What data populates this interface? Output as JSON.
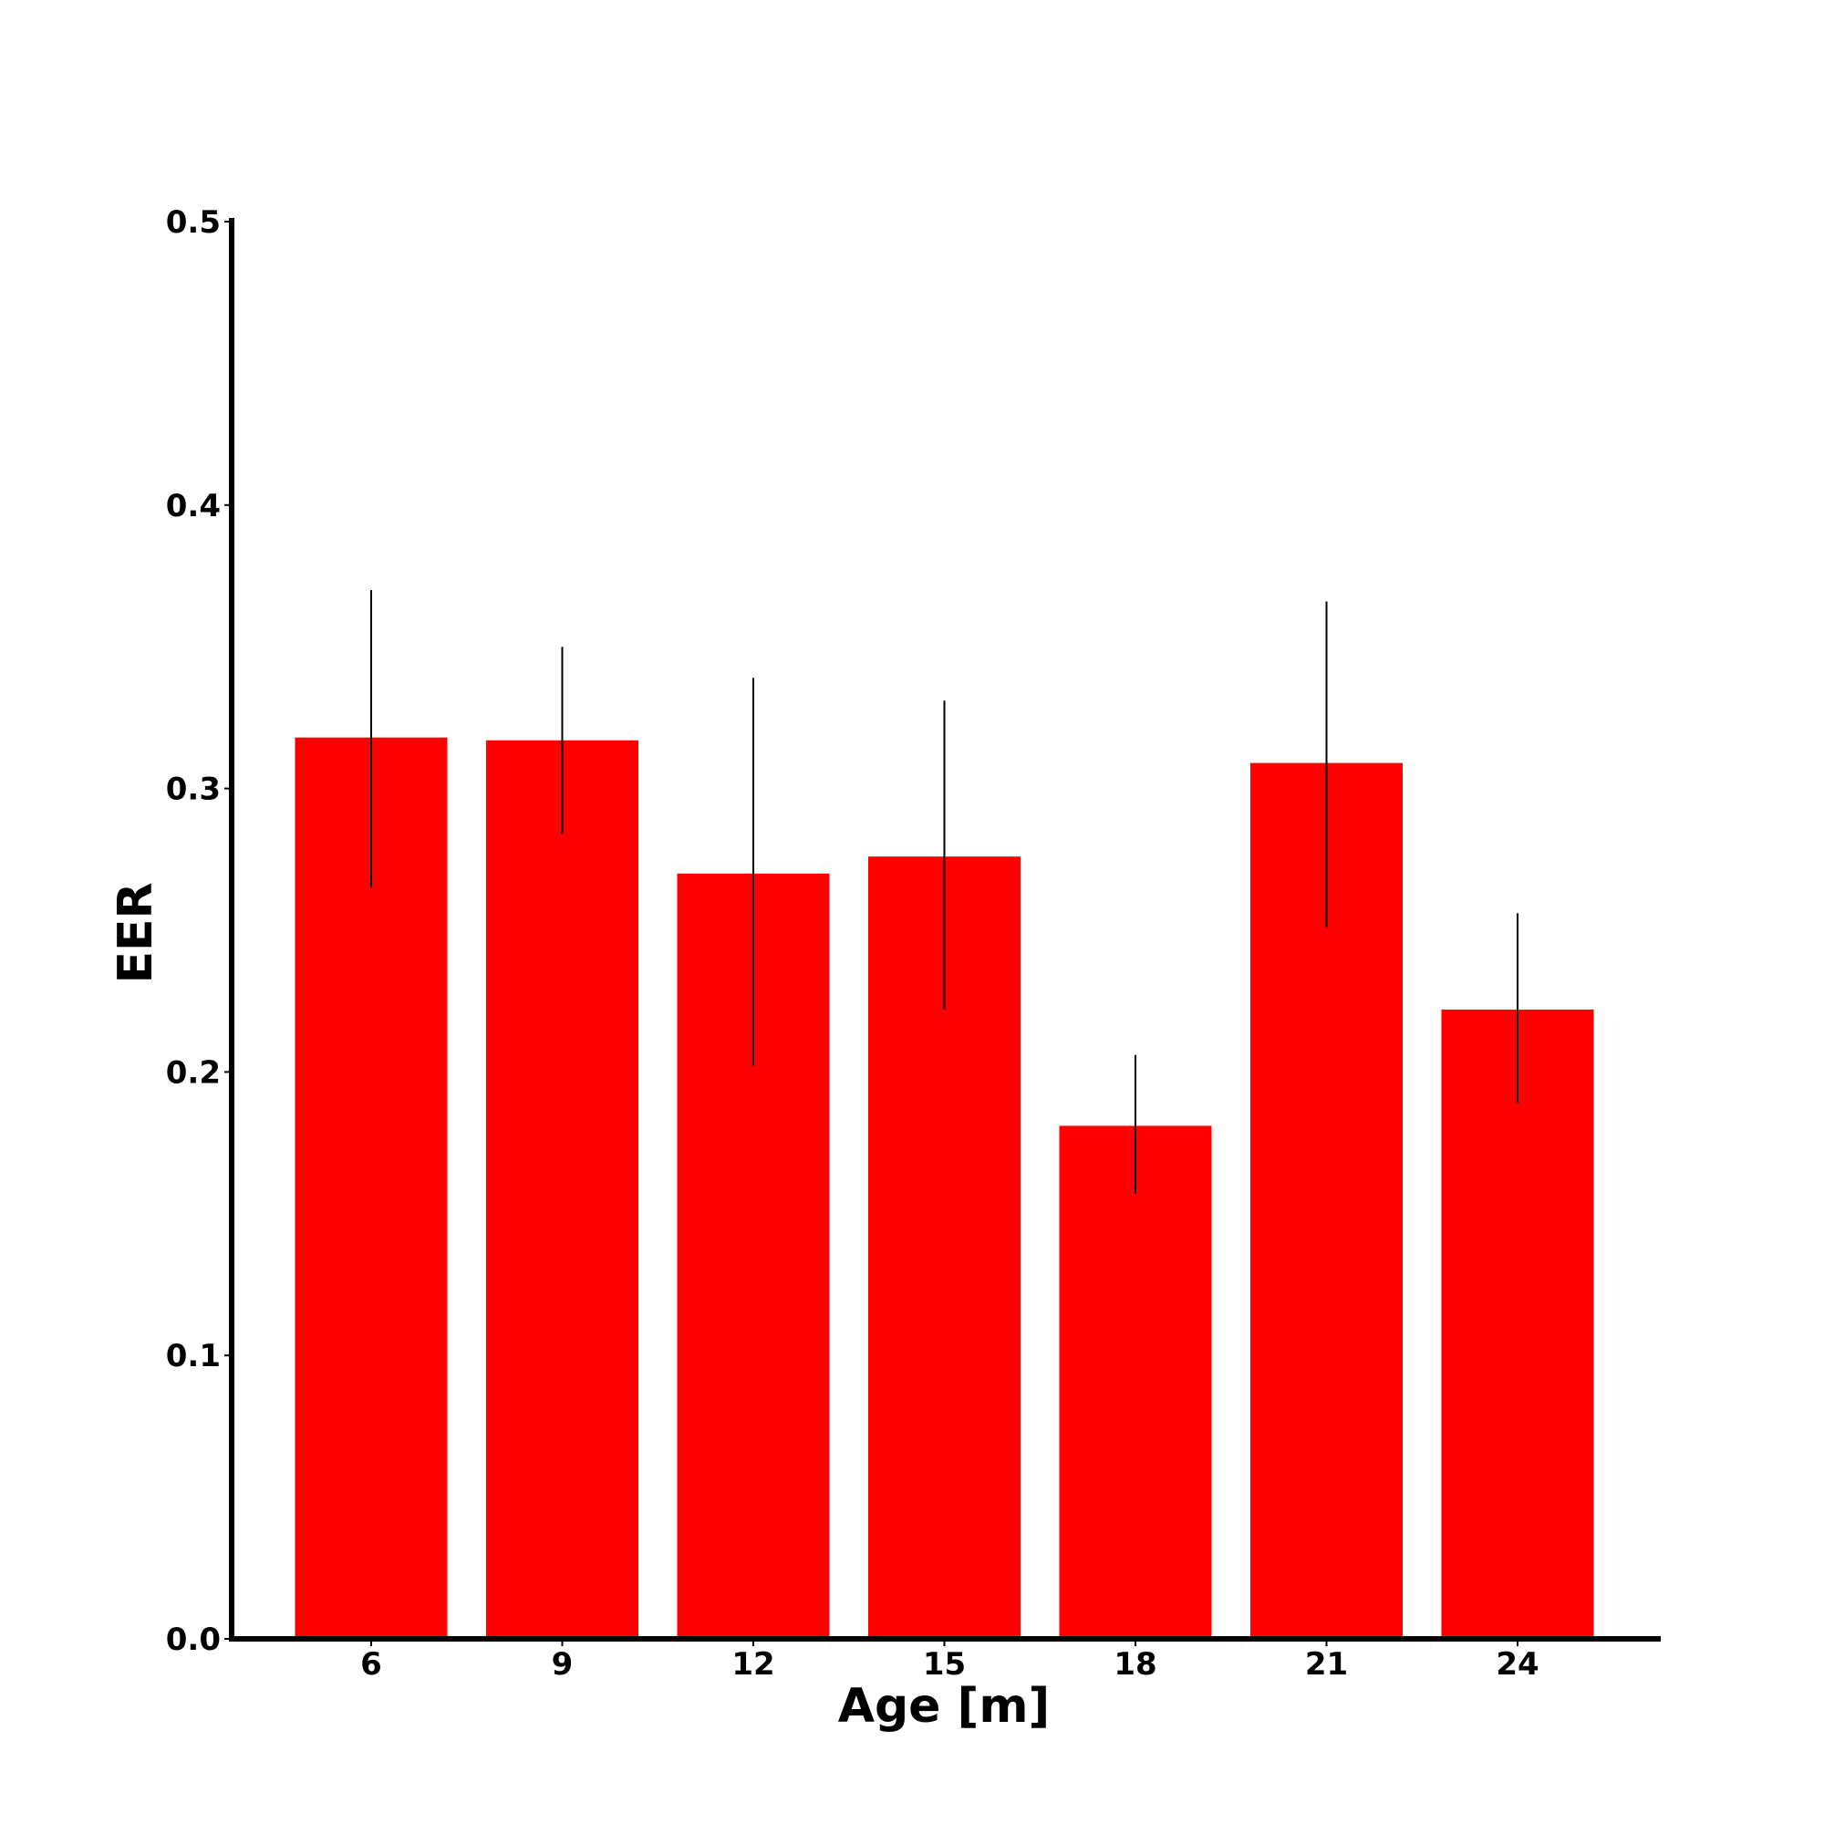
{
  "chart_data": {
    "type": "bar",
    "title": "",
    "xlabel": "Age [m]",
    "ylabel": "EER",
    "categories": [
      "6",
      "9",
      "12",
      "15",
      "18",
      "21",
      "24"
    ],
    "values": [
      0.318,
      0.317,
      0.27,
      0.276,
      0.181,
      0.309,
      0.222
    ],
    "error_low": [
      0.265,
      0.284,
      0.202,
      0.222,
      0.157,
      0.251,
      0.189
    ],
    "error_high": [
      0.37,
      0.35,
      0.339,
      0.331,
      0.206,
      0.366,
      0.256
    ],
    "ylim": [
      0.0,
      0.5
    ],
    "yticks": [
      "0.0",
      "0.1",
      "0.2",
      "0.3",
      "0.4",
      "0.5"
    ],
    "grid": false,
    "bar_color": "#ff0000",
    "error_color": "#000000"
  }
}
